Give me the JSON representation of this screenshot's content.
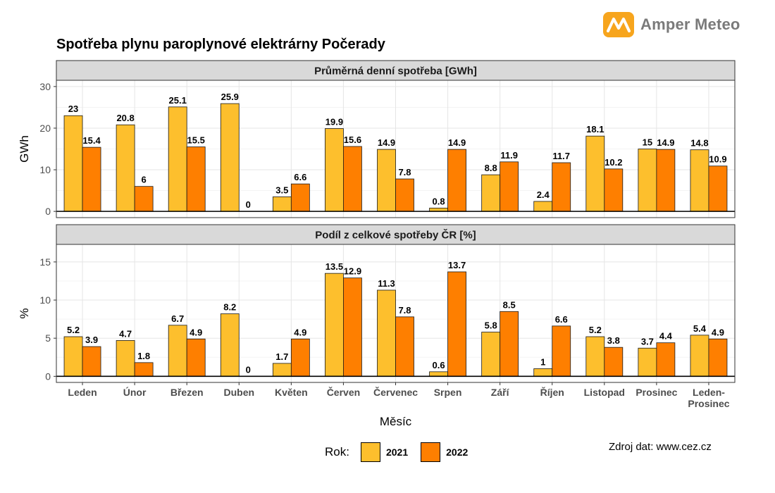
{
  "title": "Spotřeba plynu paroplynové elektrárny Počerady",
  "brand": {
    "name": "Amper Meteo",
    "color": "#f7a51d"
  },
  "source_note": "Zdroj dat: www.cez.cz",
  "legend": {
    "title": "Rok:"
  },
  "colors": {
    "2021": "#fdbf2d",
    "2022": "#fe7f00",
    "strip": "#d9d9d9",
    "grid": "#e5e5e5"
  },
  "chart_data": {
    "type": "bar",
    "xlabel": "Měsíc",
    "categories": [
      "Leden",
      "Únor",
      "Březen",
      "Duben",
      "Květen",
      "Červen",
      "Červenec",
      "Srpen",
      "Září",
      "Říjen",
      "Listopad",
      "Prosinec",
      "Leden-Prosinec"
    ],
    "category_lines": [
      [
        "Leden"
      ],
      [
        "Únor"
      ],
      [
        "Březen"
      ],
      [
        "Duben"
      ],
      [
        "Květen"
      ],
      [
        "Červen"
      ],
      [
        "Červenec"
      ],
      [
        "Srpen"
      ],
      [
        "Září"
      ],
      [
        "Říjen"
      ],
      [
        "Listopad"
      ],
      [
        "Prosinec"
      ],
      [
        "Leden-",
        "Prosinec"
      ]
    ],
    "series_names": [
      "2021",
      "2022"
    ],
    "panels": [
      {
        "title": "Průměrná denní spotřeba [GWh]",
        "ylabel": "GWh",
        "ylim": [
          -1.5,
          31.5
        ],
        "yticks": [
          0,
          10,
          20,
          30
        ],
        "series": [
          {
            "name": "2021",
            "values": [
              23,
              20.8,
              25.1,
              25.9,
              3.5,
              19.9,
              14.9,
              0.8,
              8.8,
              2.4,
              18.1,
              15,
              14.8
            ]
          },
          {
            "name": "2022",
            "values": [
              15.4,
              6,
              15.5,
              0,
              6.6,
              15.6,
              7.8,
              14.9,
              11.9,
              11.7,
              10.2,
              14.9,
              10.9
            ]
          }
        ]
      },
      {
        "title": "Podíl z celkové spotřeby ČR [%]",
        "ylabel": "%",
        "ylim": [
          -0.8,
          17.3
        ],
        "yticks": [
          0,
          5,
          10,
          15
        ],
        "series": [
          {
            "name": "2021",
            "values": [
              5.2,
              4.7,
              6.7,
              8.2,
              1.7,
              13.5,
              11.3,
              0.6,
              5.8,
              1,
              5.2,
              3.7,
              5.4
            ]
          },
          {
            "name": "2022",
            "values": [
              3.9,
              1.8,
              4.9,
              0,
              4.9,
              12.9,
              7.8,
              13.7,
              8.5,
              6.6,
              3.8,
              4.4,
              4.9
            ]
          }
        ]
      }
    ]
  }
}
